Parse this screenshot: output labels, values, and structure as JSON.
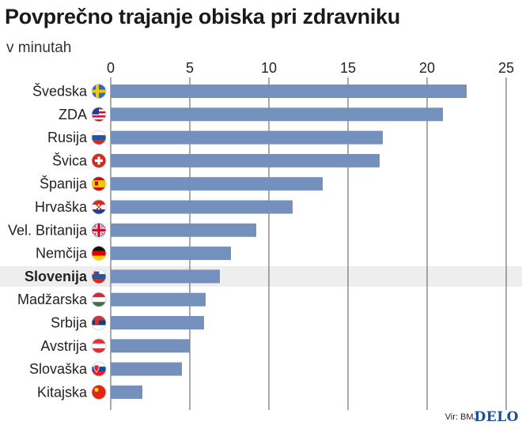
{
  "header": {
    "title": "Povprečno trajanje obiska pri zdravniku",
    "subtitle": "v minutah"
  },
  "footer": {
    "source": "Vir: BMJ",
    "logo": "DELO"
  },
  "colors": {
    "bar": "#7491bd",
    "highlight_row": "#eeeeee",
    "grid": "#555555",
    "logo": "#1d4f91"
  },
  "chart_data": {
    "type": "bar",
    "orientation": "horizontal",
    "title": "Povprečno trajanje obiska pri zdravniku",
    "subtitle": "v minutah",
    "categories": [
      "Švedska",
      "ZDA",
      "Rusija",
      "Švica",
      "Španija",
      "Hrvaška",
      "Vel. Britanija",
      "Nemčija",
      "Slovenija",
      "Madžarska",
      "Srbija",
      "Avstrija",
      "Slovaška",
      "Kitajska"
    ],
    "values": [
      22.5,
      21.0,
      17.2,
      17.0,
      13.4,
      11.5,
      9.2,
      7.6,
      6.9,
      6.0,
      5.9,
      5.0,
      4.5,
      2.0
    ],
    "flags": [
      "sweden-flag",
      "usa-flag",
      "russia-flag",
      "switzerland-flag",
      "spain-flag",
      "croatia-flag",
      "uk-flag",
      "germany-flag",
      "slovenia-flag",
      "hungary-flag",
      "serbia-flag",
      "austria-flag",
      "slovakia-flag",
      "china-flag"
    ],
    "highlight": "Slovenija",
    "xlim": [
      0,
      25
    ],
    "xticks": [
      0,
      5,
      10,
      15,
      20,
      25
    ],
    "tick_position": "top",
    "grid": true
  }
}
